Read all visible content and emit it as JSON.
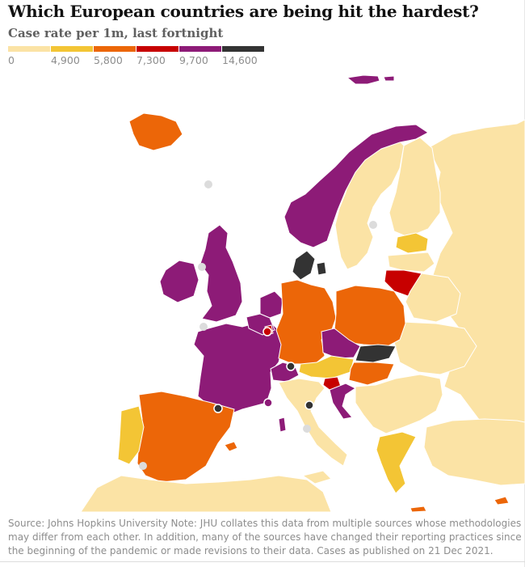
{
  "title": "Which European countries are being hit the hardest?",
  "subtitle": "Case rate per 1m, last fortnight",
  "legend": {
    "breaks": [
      "0",
      "4,900",
      "5,800",
      "7,300",
      "9,700",
      "14,600"
    ],
    "colors": [
      "#fbe3a5",
      "#f3c535",
      "#ec6608",
      "#c70000",
      "#8d1b77",
      "#333333"
    ]
  },
  "colors": {
    "land": "#fbe3a5",
    "no_data": "#dcdcdc",
    "sea": "#ffffff",
    "border": "#ffffff"
  },
  "countries": [
    {
      "name": "Norway",
      "bin": 4
    },
    {
      "name": "Sweden",
      "bin": 0
    },
    {
      "name": "Finland",
      "bin": 0
    },
    {
      "name": "Russia",
      "bin": 0
    },
    {
      "name": "Iceland",
      "bin": 2
    },
    {
      "name": "Svalbard",
      "bin": 4
    },
    {
      "name": "United Kingdom",
      "bin": 4
    },
    {
      "name": "Ireland",
      "bin": 4
    },
    {
      "name": "France",
      "bin": 4
    },
    {
      "name": "Spain",
      "bin": 2
    },
    {
      "name": "Portugal",
      "bin": 1
    },
    {
      "name": "Germany",
      "bin": 2
    },
    {
      "name": "Poland",
      "bin": 2
    },
    {
      "name": "Denmark",
      "bin": 5
    },
    {
      "name": "Netherlands",
      "bin": 4
    },
    {
      "name": "Belgium",
      "bin": 4
    },
    {
      "name": "Luxembourg",
      "bin": 3
    },
    {
      "name": "Switzerland",
      "bin": 4
    },
    {
      "name": "Liechtenstein",
      "bin": 5
    },
    {
      "name": "Austria",
      "bin": 1
    },
    {
      "name": "Czechia",
      "bin": 4
    },
    {
      "name": "Slovakia",
      "bin": 5
    },
    {
      "name": "Hungary",
      "bin": 2
    },
    {
      "name": "Slovenia",
      "bin": 3
    },
    {
      "name": "Croatia",
      "bin": 4
    },
    {
      "name": "Lithuania",
      "bin": 3
    },
    {
      "name": "Latvia",
      "bin": 0
    },
    {
      "name": "Estonia",
      "bin": 1
    },
    {
      "name": "Belarus",
      "bin": 0
    },
    {
      "name": "Ukraine",
      "bin": 0
    },
    {
      "name": "Italy",
      "bin": 0
    },
    {
      "name": "Greece",
      "bin": 1
    },
    {
      "name": "Cyprus",
      "bin": 2
    },
    {
      "name": "Crete",
      "bin": 2
    },
    {
      "name": "Mallorca",
      "bin": 2
    },
    {
      "name": "Corsica",
      "bin": 4
    }
  ],
  "footnote": "Source: Johns Hopkins University Note: JHU collates this data from multiple sources whose methodologies may differ from each other. In addition, many of the sources have changed their reporting practices since the beginning of the pandemic or made revisions to their data. Cases as published on 21 Dec 2021."
}
